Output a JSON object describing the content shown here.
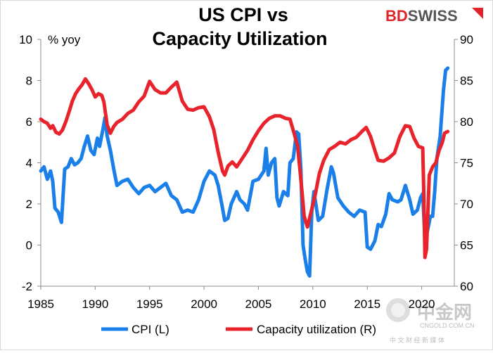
{
  "brand": {
    "part1": "BD",
    "part2": "SWISS"
  },
  "watermark": {
    "name": "中金网",
    "url": "CNGOLD.COM.CN",
    "tagline": "中 文 财 经 新 媒 体"
  },
  "chart_data": {
    "type": "line",
    "title": [
      "US CPI vs",
      "Capacity Utilization"
    ],
    "left_axis": {
      "label": "% yoy",
      "min": -2,
      "max": 10,
      "ticks": [
        -2,
        0,
        2,
        4,
        6,
        8,
        10
      ]
    },
    "right_axis": {
      "min": 60,
      "max": 90,
      "ticks": [
        60,
        65,
        70,
        75,
        80,
        85,
        90
      ]
    },
    "x_axis": {
      "min": 1985,
      "max": 2023,
      "ticks": [
        1985,
        1990,
        1995,
        2000,
        2005,
        2010,
        2015,
        2020
      ]
    },
    "grid": false,
    "legend_position": "bottom",
    "series": [
      {
        "name": "CPI (L)",
        "axis": "left",
        "color": "#1a7fe8",
        "x": [
          1985.0,
          1985.3,
          1985.6,
          1985.9,
          1986.1,
          1986.3,
          1986.6,
          1986.9,
          1987.2,
          1987.5,
          1987.8,
          1988.1,
          1988.4,
          1988.7,
          1989.0,
          1989.3,
          1989.6,
          1989.9,
          1990.2,
          1990.4,
          1990.7,
          1990.9,
          1991.1,
          1991.4,
          1991.7,
          1992.0,
          1992.5,
          1993.0,
          1993.5,
          1994.0,
          1994.5,
          1995.0,
          1995.5,
          1996.0,
          1996.5,
          1997.0,
          1997.5,
          1998.0,
          1998.5,
          1999.0,
          1999.5,
          2000.0,
          2000.5,
          2001.0,
          2001.3,
          2001.7,
          2001.9,
          2002.2,
          2002.5,
          2003.0,
          2003.3,
          2003.7,
          2004.0,
          2004.5,
          2005.0,
          2005.5,
          2005.7,
          2005.9,
          2006.2,
          2006.5,
          2006.7,
          2006.9,
          2007.3,
          2007.7,
          2007.9,
          2008.2,
          2008.5,
          2008.7,
          2008.9,
          2009.1,
          2009.3,
          2009.5,
          2009.7,
          2009.9,
          2010.1,
          2010.5,
          2010.9,
          2011.3,
          2011.7,
          2011.9,
          2012.3,
          2012.8,
          2013.3,
          2013.8,
          2014.3,
          2014.8,
          2015.0,
          2015.3,
          2015.7,
          2016.0,
          2016.3,
          2016.7,
          2017.0,
          2017.3,
          2017.8,
          2018.1,
          2018.5,
          2018.9,
          2019.2,
          2019.6,
          2019.9,
          2020.1,
          2020.3,
          2020.5,
          2020.8,
          2021.0,
          2021.2,
          2021.4,
          2021.7,
          2022.0,
          2022.2,
          2022.4
        ],
        "values": [
          3.6,
          3.8,
          3.2,
          3.6,
          3.1,
          1.8,
          1.6,
          1.1,
          3.7,
          3.8,
          4.2,
          3.9,
          4.0,
          4.2,
          4.8,
          5.3,
          4.6,
          4.4,
          5.2,
          4.8,
          5.6,
          6.2,
          5.3,
          4.6,
          3.7,
          2.9,
          3.1,
          3.2,
          2.8,
          2.5,
          2.8,
          2.9,
          2.6,
          2.8,
          3.0,
          2.4,
          2.2,
          1.6,
          1.7,
          1.6,
          2.2,
          3.1,
          3.6,
          3.4,
          2.9,
          1.8,
          1.2,
          1.3,
          2.0,
          2.6,
          2.2,
          2.0,
          1.7,
          3.1,
          3.2,
          3.6,
          4.7,
          3.4,
          4.0,
          4.2,
          2.3,
          1.9,
          2.6,
          2.4,
          4.0,
          4.2,
          5.5,
          5.4,
          3.7,
          0.0,
          -0.7,
          -1.3,
          -1.5,
          1.6,
          2.6,
          1.2,
          1.4,
          2.7,
          3.8,
          3.5,
          2.3,
          1.9,
          1.6,
          1.4,
          1.7,
          1.6,
          -0.1,
          -0.2,
          0.2,
          1.0,
          0.9,
          1.5,
          2.5,
          2.2,
          2.1,
          2.2,
          2.9,
          2.2,
          1.5,
          1.7,
          2.3,
          2.5,
          0.3,
          0.6,
          1.4,
          1.4,
          2.6,
          4.2,
          5.3,
          7.5,
          8.5,
          8.6
        ]
      },
      {
        "name": "Capacity utilization (R)",
        "axis": "right",
        "color": "#e8232b",
        "x": [
          1985.0,
          1985.3,
          1985.6,
          1985.9,
          1986.1,
          1986.4,
          1986.7,
          1987.0,
          1987.3,
          1987.6,
          1987.9,
          1988.2,
          1988.5,
          1988.8,
          1989.1,
          1989.4,
          1989.7,
          1990.0,
          1990.3,
          1990.6,
          1990.8,
          1991.1,
          1991.4,
          1991.7,
          1992.0,
          1992.5,
          1993.0,
          1993.5,
          1994.0,
          1994.5,
          1995.0,
          1995.5,
          1996.0,
          1996.5,
          1997.0,
          1997.5,
          1998.0,
          1998.5,
          1999.0,
          1999.5,
          2000.0,
          2000.5,
          2000.9,
          2001.3,
          2001.7,
          2001.9,
          2002.2,
          2002.6,
          2003.0,
          2003.5,
          2004.0,
          2004.5,
          2005.0,
          2005.5,
          2006.0,
          2006.5,
          2007.0,
          2007.5,
          2007.9,
          2008.3,
          2008.6,
          2008.9,
          2009.2,
          2009.5,
          2009.8,
          2010.2,
          2010.6,
          2011.0,
          2011.5,
          2012.0,
          2012.5,
          2013.0,
          2013.5,
          2014.0,
          2014.5,
          2014.9,
          2015.3,
          2015.7,
          2016.0,
          2016.5,
          2017.0,
          2017.5,
          2018.0,
          2018.5,
          2018.9,
          2019.3,
          2019.7,
          2020.1,
          2020.2,
          2020.3,
          2020.45,
          2020.7,
          2021.0,
          2021.3,
          2021.6,
          2021.9,
          2022.1,
          2022.4
        ],
        "values": [
          80.3,
          80.0,
          79.8,
          79.2,
          79.5,
          78.7,
          78.5,
          79.0,
          80.0,
          81.2,
          82.5,
          83.4,
          84.0,
          84.5,
          85.2,
          84.6,
          83.9,
          83.0,
          83.4,
          83.2,
          82.4,
          79.6,
          78.6,
          79.4,
          79.9,
          80.3,
          81.0,
          81.4,
          82.4,
          83.1,
          84.9,
          83.9,
          83.5,
          83.5,
          84.2,
          84.8,
          82.5,
          81.5,
          81.4,
          81.7,
          81.8,
          80.6,
          79.0,
          76.3,
          74.0,
          73.5,
          74.6,
          75.1,
          74.5,
          75.5,
          76.5,
          77.8,
          78.9,
          79.8,
          80.4,
          80.7,
          80.7,
          80.4,
          80.3,
          78.5,
          77.0,
          73.0,
          68.5,
          67.2,
          68.8,
          71.0,
          73.7,
          75.3,
          76.6,
          77.0,
          77.5,
          77.3,
          77.8,
          78.1,
          78.8,
          79.3,
          78.2,
          76.5,
          75.3,
          75.2,
          75.6,
          76.2,
          78.2,
          79.5,
          79.4,
          78.0,
          77.0,
          76.8,
          71.0,
          63.5,
          64.5,
          73.5,
          74.5,
          75.0,
          76.5,
          77.5,
          78.6,
          78.8
        ]
      }
    ]
  }
}
